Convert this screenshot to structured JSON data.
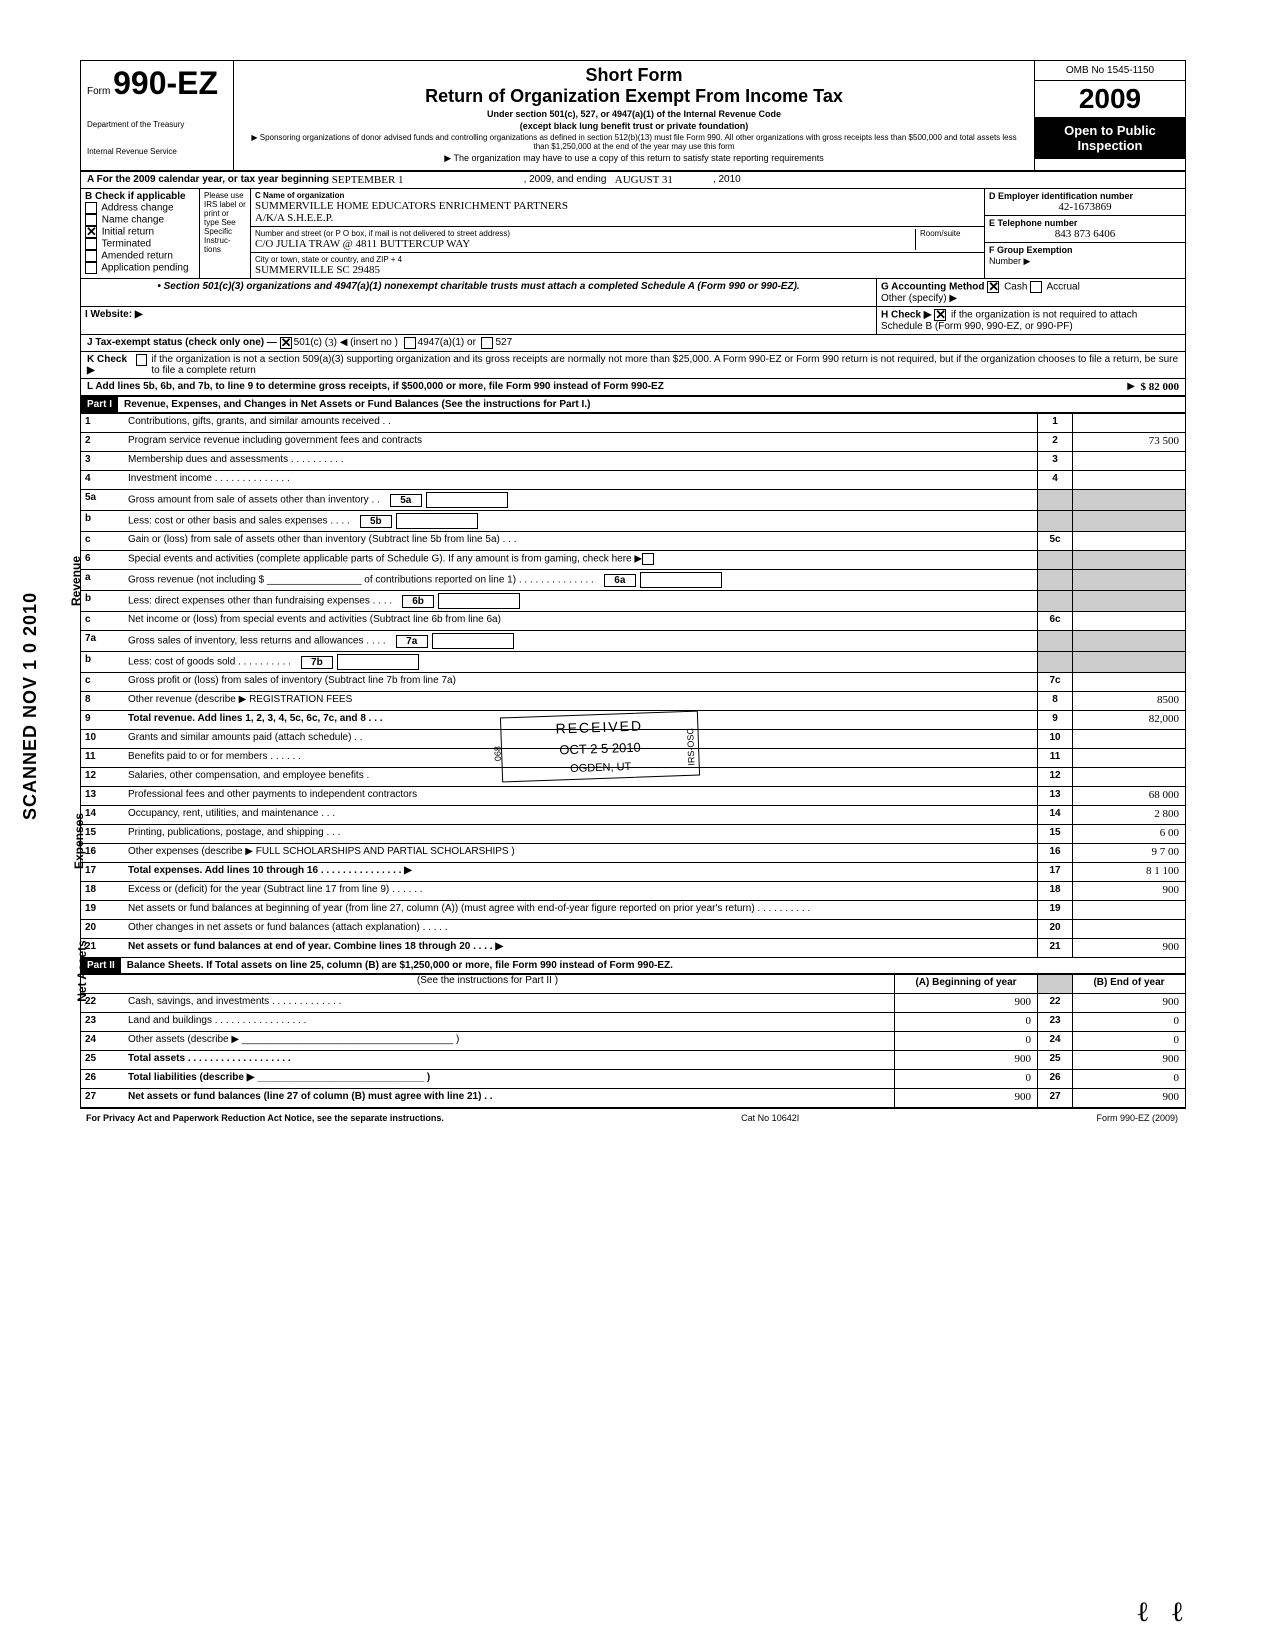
{
  "sideways_stamp": "SCANNED NOV 1 0 2010",
  "header": {
    "form_prefix": "Form",
    "form_number": "990-EZ",
    "dept1": "Department of the Treasury",
    "dept2": "Internal Revenue Service",
    "short_form": "Short Form",
    "main_title": "Return of Organization Exempt From Income Tax",
    "sub1": "Under section 501(c), 527, or 4947(a)(1) of the Internal Revenue Code",
    "sub2": "(except black lung benefit trust or private foundation)",
    "sub3": "▶ Sponsoring organizations of donor advised funds and controlling organizations as defined in section 512(b)(13) must file Form 990. All other organizations with gross receipts less than $500,000 and total assets less than $1,250,000 at the end of the year may use this form",
    "sub4": "▶ The organization may have to use a copy of this return to satisfy state reporting requirements",
    "omb": "OMB No 1545-1150",
    "year": "2009",
    "open_public1": "Open to Public",
    "open_public2": "Inspection"
  },
  "line_a": {
    "prefix": "A For the 2009 calendar year, or tax year beginning",
    "begin": "SEPTEMBER 1",
    "mid": ", 2009, and ending",
    "end": "AUGUST 31",
    "endyear": ", 2010"
  },
  "section_b": {
    "label": "B Check if applicable",
    "items": [
      "Address change",
      "Name change",
      "Initial return",
      "Terminated",
      "Amended return",
      "Application pending"
    ],
    "checked_index": 2
  },
  "section_c": {
    "please": "Please use IRS label or print or type See Specific Instruc-tions",
    "name_label": "C Name of organization",
    "name": "SUMMERVILLE HOME EDUCATORS ENRICHMENT PARTNERS",
    "aka": "A/K/A     S.H.E.E.P.",
    "street_label": "Number and street (or P O box, if mail is not delivered to street address)",
    "street": "C/O JULIA TRAW @ 4811 BUTTERCUP WAY",
    "room_label": "Room/suite",
    "city_label": "City or town, state or country, and ZIP + 4",
    "city": "SUMMERVILLE SC 29485"
  },
  "section_d": {
    "label": "D Employer identification number",
    "value": "42-1673869"
  },
  "section_e": {
    "label": "E Telephone number",
    "value": "843 873 6406"
  },
  "section_f": {
    "label": "F Group Exemption",
    "label2": "Number ▶"
  },
  "section_501": "• Section 501(c)(3) organizations and 4947(a)(1) nonexempt charitable trusts must attach a completed Schedule A (Form 990 or 990-EZ).",
  "section_g": {
    "label": "G Accounting Method",
    "cash": "Cash",
    "accrual": "Accrual",
    "other": "Other (specify) ▶"
  },
  "section_h": {
    "prefix": "H Check ▶",
    "text": "if the organization is not required to attach Schedule B (Form 990, 990-EZ, or 990-PF)"
  },
  "section_i": "I Website: ▶",
  "section_j": {
    "prefix": "J Tax-exempt status (check only one) —",
    "opt1": "501(c) (",
    "insert": "3",
    "opt1b": ") ◀ (insert no )",
    "opt2": "4947(a)(1) or",
    "opt3": "527"
  },
  "section_k": {
    "prefix": "K Check ▶",
    "text": "if the organization is not a section 509(a)(3) supporting organization and its gross receipts are normally not more than $25,000. A Form 990-EZ or Form 990 return is not required, but if the organization chooses to file a return, be sure to file a complete return"
  },
  "section_l": {
    "text": "L Add lines 5b, 6b, and 7b, to line 9 to determine gross receipts, if $500,000 or more, file Form 990 instead of Form 990-EZ",
    "arrow": "▶",
    "amount": "$ 82 000"
  },
  "part1": {
    "label": "Part I",
    "title": "Revenue, Expenses, and Changes in Net Assets or Fund Balances (See the instructions for Part I.)"
  },
  "side_labels": {
    "revenue": "Revenue",
    "expenses": "Expenses",
    "netassets": "Net Assets"
  },
  "lines": {
    "l1": {
      "n": "1",
      "d": "Contributions, gifts, grants, and similar amounts received . .",
      "box": "1",
      "amt": ""
    },
    "l2": {
      "n": "2",
      "d": "Program service revenue including government fees and contracts",
      "box": "2",
      "amt": "73 500"
    },
    "l3": {
      "n": "3",
      "d": "Membership dues and assessments . . . . . . . . . .",
      "box": "3",
      "amt": ""
    },
    "l4": {
      "n": "4",
      "d": "Investment income . . . . . . . . . . . . . .",
      "box": "4",
      "amt": ""
    },
    "l5a": {
      "n": "5a",
      "d": "Gross amount from sale of assets other than inventory . .",
      "ibox": "5a"
    },
    "l5b": {
      "n": "b",
      "d": "Less: cost or other basis and sales expenses . . . .",
      "ibox": "5b"
    },
    "l5c": {
      "n": "c",
      "d": "Gain or (loss) from sale of assets other than inventory (Subtract line 5b from line 5a) . . .",
      "box": "5c",
      "amt": ""
    },
    "l6": {
      "n": "6",
      "d": "Special events and activities (complete applicable parts of Schedule G). If any amount is from gaming, check here ▶"
    },
    "l6a": {
      "n": "a",
      "d": "Gross revenue (not including $ _________________ of contributions reported on line 1) . . . . . . . . . . . . . .",
      "ibox": "6a"
    },
    "l6b": {
      "n": "b",
      "d": "Less: direct expenses other than fundraising expenses . . . .",
      "ibox": "6b"
    },
    "l6c": {
      "n": "c",
      "d": "Net income or (loss) from special events and activities (Subtract line 6b from line 6a)",
      "box": "6c",
      "amt": ""
    },
    "l7a": {
      "n": "7a",
      "d": "Gross sales of inventory, less returns and allowances . . . .",
      "ibox": "7a"
    },
    "l7b": {
      "n": "b",
      "d": "Less: cost of goods sold . . . . . . . . . .",
      "ibox": "7b"
    },
    "l7c": {
      "n": "c",
      "d": "Gross profit or (loss) from sales of inventory (Subtract line 7b from line 7a)",
      "box": "7c",
      "amt": ""
    },
    "l8": {
      "n": "8",
      "d": "Other revenue (describe ▶  REGISTRATION FEES",
      "box": "8",
      "amt": "8500"
    },
    "l9": {
      "n": "9",
      "d": "Total revenue. Add lines 1, 2, 3, 4, 5c, 6c, 7c, and 8 . . .",
      "box": "9",
      "amt": "82,000",
      "arrow": "▶"
    },
    "l10": {
      "n": "10",
      "d": "Grants and similar amounts paid (attach schedule) . .",
      "box": "10",
      "amt": ""
    },
    "l11": {
      "n": "11",
      "d": "Benefits paid to or for members . . . . . .",
      "box": "11",
      "amt": ""
    },
    "l12": {
      "n": "12",
      "d": "Salaries, other compensation, and employee benefits .",
      "box": "12",
      "amt": ""
    },
    "l13": {
      "n": "13",
      "d": "Professional fees and other payments to independent contractors",
      "box": "13",
      "amt": "68 000"
    },
    "l14": {
      "n": "14",
      "d": "Occupancy, rent, utilities, and maintenance . . .",
      "box": "14",
      "amt": "2 800"
    },
    "l15": {
      "n": "15",
      "d": "Printing, publications, postage, and shipping . . .",
      "box": "15",
      "amt": "6 00"
    },
    "l16": {
      "n": "16",
      "d": "Other expenses (describe ▶ FULL SCHOLARSHIPS AND PARTIAL SCHOLARSHIPS )",
      "box": "16",
      "amt": "9 7 00"
    },
    "l17": {
      "n": "17",
      "d": "Total expenses. Add lines 10 through 16 . . . . . . . . . . . . . . . ▶",
      "box": "17",
      "amt": "8 1 100"
    },
    "l18": {
      "n": "18",
      "d": "Excess or (deficit) for the year (Subtract line 17 from line 9) . . . . . .",
      "box": "18",
      "amt": "900"
    },
    "l19": {
      "n": "19",
      "d": "Net assets or fund balances at beginning of year (from line 27, column (A)) (must agree with end-of-year figure reported on prior year's return) . . . . . . . . . .",
      "box": "19",
      "amt": ""
    },
    "l20": {
      "n": "20",
      "d": "Other changes in net assets or fund balances (attach explanation) . . . . .",
      "box": "20",
      "amt": ""
    },
    "l21": {
      "n": "21",
      "d": "Net assets or fund balances at end of year. Combine lines 18 through 20 . . . . ▶",
      "box": "21",
      "amt": "900"
    }
  },
  "received_stamp": {
    "line1": "RECEIVED",
    "line2": "OCT 2 5 2010",
    "line3": "OGDEN, UT",
    "side": "IRS-OSC",
    "side2": "068"
  },
  "part2": {
    "label": "Part II",
    "title": "Balance Sheets. If Total assets on line 25, column (B) are $1,250,000 or more, file Form 990 instead of Form 990-EZ.",
    "instruction": "(See the instructions for Part II )",
    "col_a": "(A) Beginning of year",
    "col_b": "(B) End of year",
    "rows": [
      {
        "n": "22",
        "d": "Cash, savings, and investments . . . . . . . . . . . . .",
        "a": "900",
        "b": "900"
      },
      {
        "n": "23",
        "d": "Land and buildings . . . . . . . . . . . . . . . . .",
        "a": "0",
        "b": "0"
      },
      {
        "n": "24",
        "d": "Other assets (describe ▶ ______________________________________ )",
        "a": "0",
        "b": "0"
      },
      {
        "n": "25",
        "d": "Total assets . . . . . . . . . . . . . . . . . . .",
        "a": "900",
        "b": "900"
      },
      {
        "n": "26",
        "d": "Total liabilities (describe ▶ ______________________________ )",
        "a": "0",
        "b": "0"
      },
      {
        "n": "27",
        "d": "Net assets or fund balances (line 27 of column (B) must agree with line 21) . .",
        "a": "900",
        "b": "900"
      }
    ]
  },
  "footer": {
    "left": "For Privacy Act and Paperwork Reduction Act Notice, see the separate instructions.",
    "mid": "Cat No 10642I",
    "right": "Form 990-EZ (2009)"
  }
}
